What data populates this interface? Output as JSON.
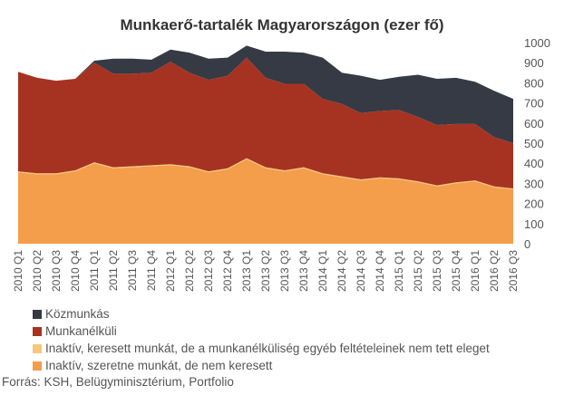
{
  "chart_data": {
    "type": "area",
    "stacked": true,
    "title": "Munkaerő-tartalék Magyarországon (ezer fő)",
    "categories": [
      "2010 Q1",
      "2010 Q2",
      "2010 Q3",
      "2010 Q4",
      "2011 Q1",
      "2011 Q2",
      "2011 Q3",
      "2011 Q4",
      "2012 Q1",
      "2012 Q2",
      "2012 Q3",
      "2012 Q4",
      "2013 Q1",
      "2013 Q2",
      "2013 Q3",
      "2013 Q4",
      "2014 Q1",
      "2014 Q2",
      "2014 Q3",
      "2014 Q4",
      "2015 Q1",
      "2015 Q2",
      "2015 Q3",
      "2015 Q4",
      "2016 Q1",
      "2016 Q2",
      "2016 Q3"
    ],
    "series": [
      {
        "name": "Közmunkás",
        "color": "#363a44",
        "values": [
          0,
          0,
          0,
          0,
          10,
          75,
          75,
          65,
          60,
          100,
          105,
          90,
          60,
          130,
          160,
          155,
          205,
          155,
          185,
          155,
          165,
          210,
          230,
          230,
          210,
          230,
          220
        ]
      },
      {
        "name": "Munkanélküli",
        "color": "#a63322",
        "values": [
          495,
          475,
          460,
          455,
          495,
          465,
          460,
          460,
          510,
          465,
          455,
          460,
          500,
          445,
          430,
          415,
          370,
          360,
          330,
          330,
          340,
          320,
          300,
          290,
          280,
          245,
          225
        ]
      },
      {
        "name": "Inaktív, keresett munkát, de a munkanélküliség egyéb feltételeinek nem tett eleget",
        "color": "#f5c77a",
        "values": [
          5,
          5,
          5,
          5,
          5,
          5,
          5,
          5,
          5,
          5,
          5,
          5,
          5,
          5,
          5,
          5,
          5,
          5,
          5,
          5,
          5,
          5,
          5,
          5,
          5,
          5,
          5
        ]
      },
      {
        "name": "Inaktív, szeretne munkát, de nem keresett",
        "color": "#f49d4a",
        "values": [
          355,
          345,
          345,
          360,
          400,
          375,
          380,
          385,
          390,
          380,
          355,
          370,
          420,
          375,
          360,
          375,
          345,
          330,
          315,
          325,
          320,
          305,
          285,
          300,
          310,
          280,
          270
        ]
      }
    ],
    "ylim": [
      0,
      1000
    ],
    "yticks": [
      0,
      100,
      200,
      300,
      400,
      500,
      600,
      700,
      800,
      900,
      1000
    ],
    "y_axis_side": "right",
    "grid": false,
    "legend_position": "bottom-left",
    "source": "Forrás: KSH, Belügyminisztérium, Portfolio"
  }
}
